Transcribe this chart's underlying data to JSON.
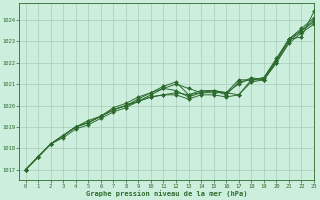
{
  "title": "Graphe pression niveau de la mer (hPa)",
  "bg_color": "#cceedd",
  "grid_color": "#aaccbb",
  "line_color": "#2d6a2d",
  "marker_color": "#2d6a2d",
  "xlim": [
    -0.5,
    23
  ],
  "ylim": [
    1016.5,
    1024.8
  ],
  "yticks": [
    1017,
    1018,
    1019,
    1020,
    1021,
    1022,
    1023,
    1024
  ],
  "xticks": [
    0,
    1,
    2,
    3,
    4,
    5,
    6,
    7,
    8,
    9,
    10,
    11,
    12,
    13,
    14,
    15,
    16,
    17,
    18,
    19,
    20,
    21,
    22,
    23
  ],
  "series": [
    [
      1017.0,
      1017.6,
      1018.2,
      1018.6,
      1019.0,
      1019.2,
      1019.5,
      1019.8,
      1020.0,
      1020.2,
      1020.4,
      1020.5,
      1020.6,
      1020.5,
      1020.6,
      1020.6,
      1020.6,
      1020.5,
      1021.2,
      1021.3,
      1022.2,
      1023.1,
      1023.2,
      1024.4
    ],
    [
      1017.0,
      1017.6,
      1018.2,
      1018.6,
      1019.0,
      1019.2,
      1019.5,
      1019.8,
      1020.0,
      1020.2,
      1020.5,
      1020.8,
      1021.0,
      1020.8,
      1020.6,
      1020.7,
      1020.6,
      1021.2,
      1021.2,
      1021.3,
      1022.1,
      1023.1,
      1023.6,
      1024.1
    ],
    [
      1017.0,
      1017.6,
      1018.2,
      1018.6,
      1019.0,
      1019.2,
      1019.5,
      1019.8,
      1020.0,
      1020.3,
      1020.6,
      1020.9,
      1021.1,
      1020.5,
      1020.7,
      1020.7,
      1020.5,
      1021.1,
      1021.2,
      1021.2,
      1022.1,
      1023.1,
      1023.5,
      1024.0
    ],
    [
      1017.0,
      1017.6,
      1018.2,
      1018.6,
      1019.0,
      1019.3,
      1019.5,
      1019.9,
      1020.1,
      1020.4,
      1020.6,
      1020.8,
      1020.7,
      1020.4,
      1020.6,
      1020.7,
      1020.6,
      1021.0,
      1021.3,
      1021.2,
      1022.0,
      1023.0,
      1023.5,
      1023.9
    ],
    [
      1017.0,
      1017.6,
      1018.2,
      1018.5,
      1018.9,
      1019.1,
      1019.4,
      1019.7,
      1019.9,
      1020.2,
      1020.4,
      1020.5,
      1020.5,
      1020.3,
      1020.5,
      1020.5,
      1020.4,
      1020.5,
      1021.1,
      1021.2,
      1022.0,
      1022.9,
      1023.4,
      1023.8
    ]
  ]
}
